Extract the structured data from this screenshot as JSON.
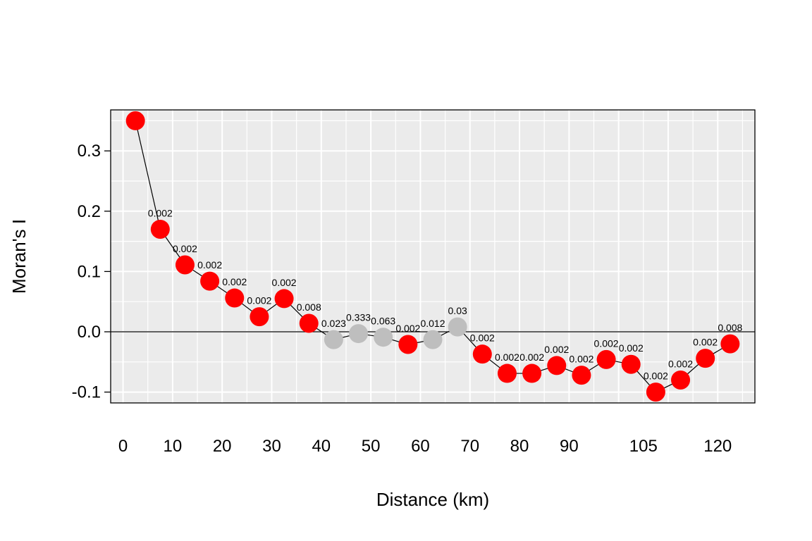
{
  "chart_data": {
    "type": "scatter",
    "title": "",
    "xlabel": "Distance (km)",
    "ylabel": "Moran's I",
    "grid": true,
    "xlim": [
      -2.5,
      127.5
    ],
    "ylim": [
      -0.118,
      0.368
    ],
    "x_ticks": [
      0,
      10,
      20,
      30,
      40,
      50,
      60,
      70,
      80,
      90,
      105,
      120
    ],
    "x_tick_labels": [
      "0",
      "10",
      "20",
      "30",
      "40",
      "50",
      "60",
      "70",
      "80",
      "90",
      "105",
      "120"
    ],
    "y_ticks": [
      -0.1,
      0.0,
      0.1,
      0.2,
      0.3
    ],
    "y_tick_labels": [
      "-0.1",
      "0.0",
      "0.1",
      "0.2",
      "0.3"
    ],
    "reference_line_y": 0,
    "significant_color": "#ff0000",
    "nonsignificant_color": "#bebebe",
    "background_color": "#ebebeb",
    "points": [
      {
        "x": 2.5,
        "y": 0.35,
        "p": "",
        "significant": true
      },
      {
        "x": 7.5,
        "y": 0.17,
        "p": "0.002",
        "significant": true
      },
      {
        "x": 12.5,
        "y": 0.111,
        "p": "0.002",
        "significant": true
      },
      {
        "x": 17.5,
        "y": 0.084,
        "p": "0.002",
        "significant": true
      },
      {
        "x": 22.5,
        "y": 0.056,
        "p": "0.002",
        "significant": true
      },
      {
        "x": 27.5,
        "y": 0.025,
        "p": "0.002",
        "significant": true
      },
      {
        "x": 32.5,
        "y": 0.055,
        "p": "0.002",
        "significant": true
      },
      {
        "x": 37.5,
        "y": 0.014,
        "p": "0.008",
        "significant": true
      },
      {
        "x": 42.5,
        "y": -0.013,
        "p": "0.023",
        "significant": false
      },
      {
        "x": 47.5,
        "y": -0.003,
        "p": "0.333",
        "significant": false
      },
      {
        "x": 52.5,
        "y": -0.009,
        "p": "0.063",
        "significant": false
      },
      {
        "x": 57.5,
        "y": -0.021,
        "p": "0.002",
        "significant": true
      },
      {
        "x": 62.5,
        "y": -0.013,
        "p": "0.012",
        "significant": false
      },
      {
        "x": 67.5,
        "y": 0.008,
        "p": "0.03",
        "significant": false
      },
      {
        "x": 72.5,
        "y": -0.037,
        "p": "0.002",
        "significant": true
      },
      {
        "x": 77.5,
        "y": -0.069,
        "p": "0.002",
        "significant": true
      },
      {
        "x": 82.5,
        "y": -0.069,
        "p": "0.002",
        "significant": true
      },
      {
        "x": 87.5,
        "y": -0.056,
        "p": "0.002",
        "significant": true
      },
      {
        "x": 92.5,
        "y": -0.072,
        "p": "0.002",
        "significant": true
      },
      {
        "x": 97.5,
        "y": -0.046,
        "p": "0.002",
        "significant": true
      },
      {
        "x": 102.5,
        "y": -0.054,
        "p": "0.002",
        "significant": true
      },
      {
        "x": 107.5,
        "y": -0.1,
        "p": "0.002",
        "significant": true
      },
      {
        "x": 112.5,
        "y": -0.08,
        "p": "0.002",
        "significant": true
      },
      {
        "x": 117.5,
        "y": -0.044,
        "p": "0.002",
        "significant": true
      },
      {
        "x": 122.5,
        "y": -0.02,
        "p": "0.008",
        "significant": true
      }
    ]
  }
}
